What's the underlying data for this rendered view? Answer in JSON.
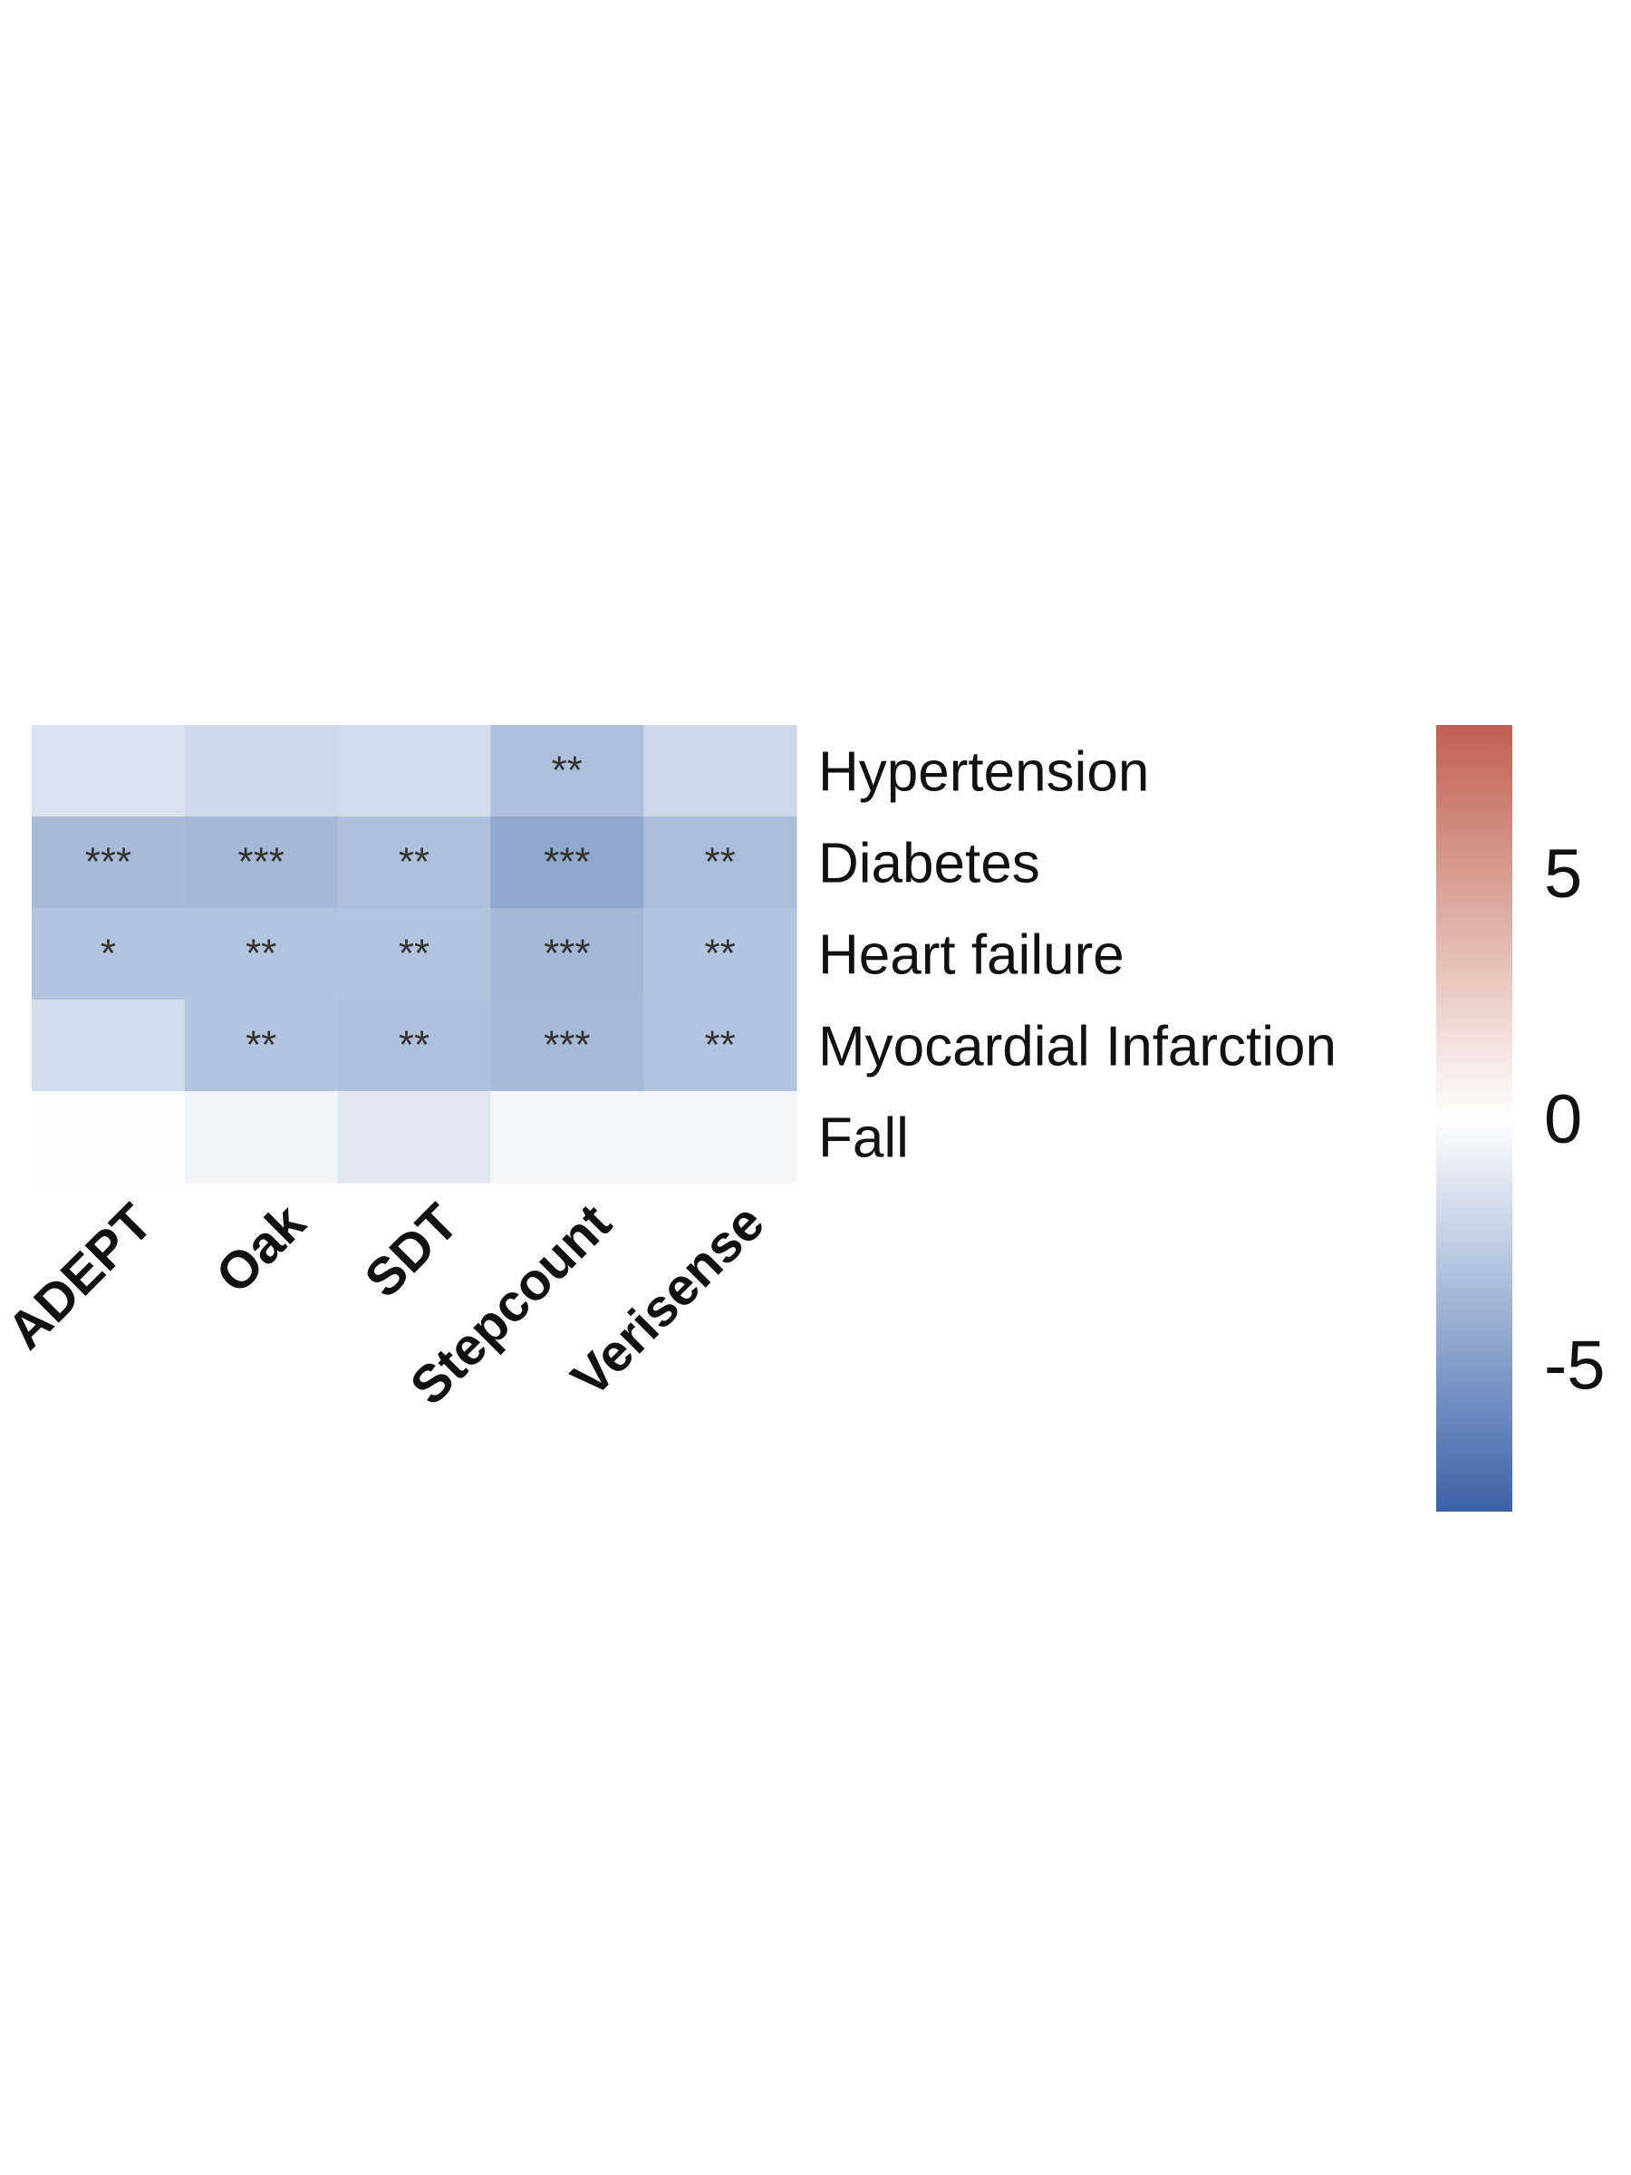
{
  "chart_data": {
    "type": "heatmap",
    "rows": [
      "Hypertension",
      "Diabetes",
      "Heart failure",
      "Myocardial Infarction",
      "Fall"
    ],
    "columns": [
      "ADEPT",
      "Oak",
      "SDT",
      "Stepcount",
      "Verisense"
    ],
    "values": [
      [
        -1.5,
        -2.0,
        -1.8,
        -3.3,
        -2.0
      ],
      [
        -3.5,
        -3.6,
        -3.2,
        -4.5,
        -3.4
      ],
      [
        -3.1,
        -3.0,
        -3.1,
        -3.6,
        -3.0
      ],
      [
        -1.8,
        -3.0,
        -3.2,
        -3.5,
        -3.0
      ],
      [
        0.1,
        -0.6,
        -1.2,
        -0.5,
        -0.5
      ]
    ],
    "annotations": [
      [
        "",
        "",
        "",
        "**",
        ""
      ],
      [
        "***",
        "***",
        "**",
        "***",
        "**"
      ],
      [
        "*",
        "**",
        "**",
        "***",
        "**"
      ],
      [
        "",
        "**",
        "**",
        "***",
        "**"
      ],
      [
        "",
        "",
        "",
        "",
        ""
      ]
    ],
    "color_scale": {
      "min": -8,
      "max": 8,
      "low_color": "#3a62a8",
      "mid_color": "#ffffff",
      "high_color": "#c0604e",
      "ticks": [
        5,
        0,
        -5
      ]
    },
    "title": "",
    "xlabel": "",
    "ylabel": ""
  }
}
